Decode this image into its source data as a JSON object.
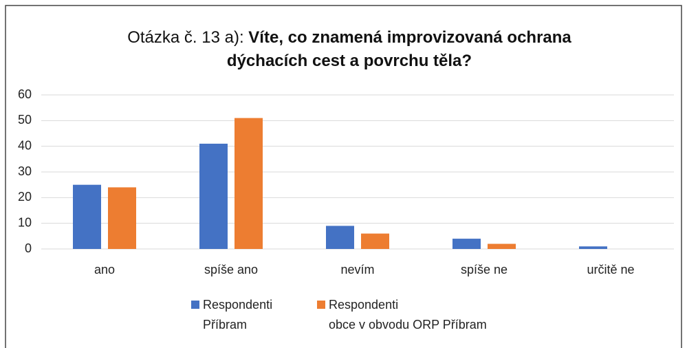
{
  "chart_data": {
    "type": "bar",
    "title_prefix": "Otázka č. 13 a):",
    "title": "Víte, co znamená improvizovaná ochrana dýchacích cest a povrchu těla?",
    "categories": [
      "ano",
      "spíše ano",
      "nevím",
      "spíše ne",
      "určitě ne"
    ],
    "series": [
      {
        "name": "Respondenti\nPříbram",
        "color": "#4472c4",
        "values": [
          25,
          41,
          9,
          4,
          1
        ]
      },
      {
        "name": "Respondenti\nobce v obvodu ORP Příbram",
        "color": "#ed7d31",
        "values": [
          24,
          51,
          6,
          2,
          0
        ]
      }
    ],
    "ylim": [
      0,
      60
    ],
    "yticks": [
      0,
      10,
      20,
      30,
      40,
      50,
      60
    ],
    "grid": true,
    "legend": "bottom"
  }
}
